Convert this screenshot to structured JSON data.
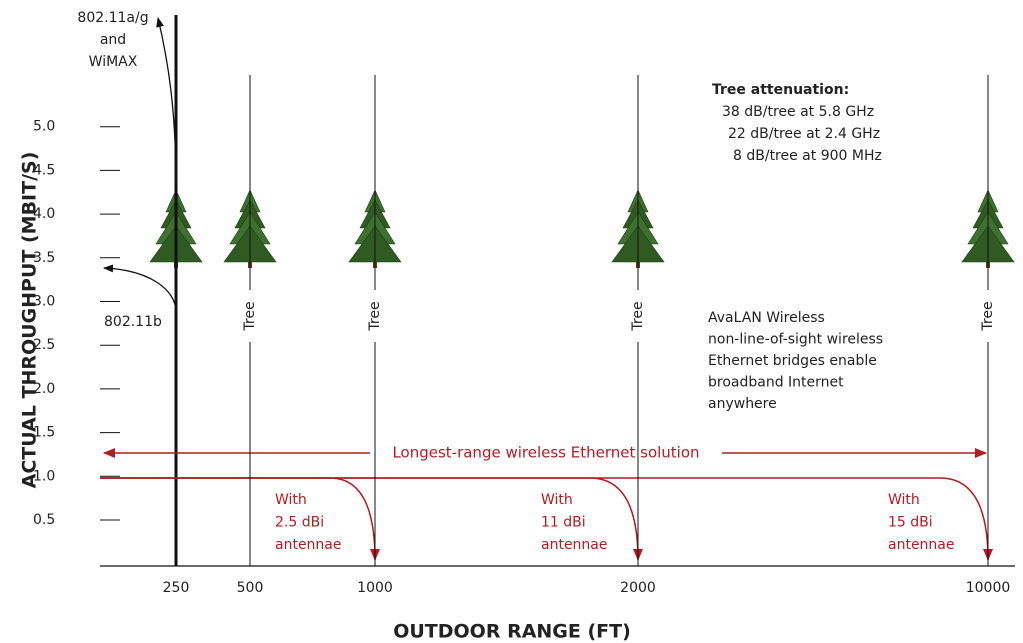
{
  "y_axis": {
    "label": "ACTUAL THROUGHPUT (MBIT/S)",
    "ticks": [
      "0.5",
      "1.0",
      "1.5",
      "2.0",
      "2.5",
      "3.0",
      "3.5",
      "4.0",
      "4.5",
      "5.0"
    ]
  },
  "x_axis": {
    "label": "OUTDOOR RANGE (FT)",
    "ticks": [
      "250",
      "500",
      "1000",
      "2000",
      "10000"
    ]
  },
  "wireless_a_g": [
    "802.11a/g",
    "and",
    "WiMAX"
  ],
  "wireless_b": "802.11b",
  "tree_labels": [
    "Tree",
    "Tree",
    "Tree",
    "Tree"
  ],
  "tree_attenuation": {
    "title": "Tree attenuation:",
    "lines": [
      "38 dB/tree at 5.8 GHz",
      "22 dB/tree at 2.4 GHz",
      "8 dB/tree at 900 MHz"
    ]
  },
  "avalan_note": [
    "AvaLAN Wireless",
    "non-line-of-sight wireless",
    "Ethernet bridges enable",
    "broadband Internet",
    "anywhere"
  ],
  "range_arrow_label": "Longest-range wireless Ethernet solution",
  "antenna_notes": [
    [
      "With",
      "2.5 dBi",
      "antennae"
    ],
    [
      "With",
      "11 dBi",
      "antennae"
    ],
    [
      "With",
      "15 dBi",
      "antennae"
    ]
  ]
}
